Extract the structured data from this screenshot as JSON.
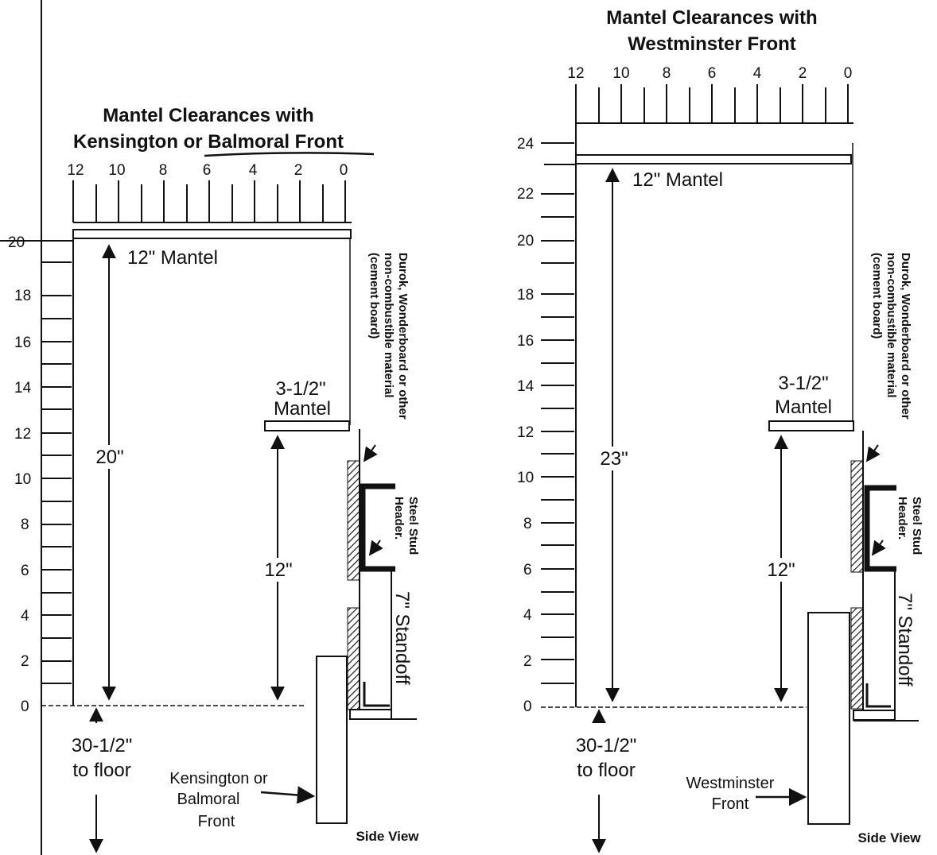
{
  "left": {
    "title_line1": "Mantel Clearances with",
    "title_line2": "Kensington or Balmoral Front",
    "scale_ticks": [
      "12",
      "10",
      "8",
      "6",
      "4",
      "2",
      "0"
    ],
    "vertical_ticks": [
      "20",
      "18",
      "16",
      "14",
      "12",
      "10",
      "8",
      "6",
      "4",
      "2",
      "0"
    ],
    "mantel_12": "12\" Mantel",
    "mantel_35_line1": "3-1/2\"",
    "mantel_35_line2": "Mantel",
    "dim_large": "20\"",
    "dim_small": "12\"",
    "floor_line1": "30-1/2\"",
    "floor_line2": "to floor",
    "front_line1": "Kensington or",
    "front_line2": "Balmoral",
    "front_line3": "Front",
    "board_line1": "Durok, Wonderboard or other",
    "board_line2": "non-combustible material",
    "board_line3": "(cement board)",
    "header_line1": "Steel Stud",
    "header_line2": "Header.",
    "standoff": "7\" Standoff",
    "side_view": "Side View"
  },
  "right": {
    "title_line1": "Mantel Clearances with",
    "title_line2": "Westminster Front",
    "scale_ticks": [
      "12",
      "10",
      "8",
      "6",
      "4",
      "2",
      "0"
    ],
    "vertical_ticks": [
      "24",
      "22",
      "20",
      "18",
      "16",
      "14",
      "12",
      "10",
      "8",
      "6",
      "4",
      "2",
      "0"
    ],
    "mantel_12": "12\" Mantel",
    "mantel_35_line1": "3-1/2\"",
    "mantel_35_line2": "Mantel",
    "dim_large": "23\"",
    "dim_small": "12\"",
    "floor_line1": "30-1/2\"",
    "floor_line2": "to floor",
    "front_line1": "Westminster",
    "front_line2": "Front",
    "board_line1": "Durok, Wonderboard or other",
    "board_line2": "non-combustible material",
    "board_line3": "(cement board)",
    "header_line1": "Steel Stud",
    "header_line2": "Header.",
    "standoff": "7\" Standoff",
    "side_view": "Side View"
  }
}
